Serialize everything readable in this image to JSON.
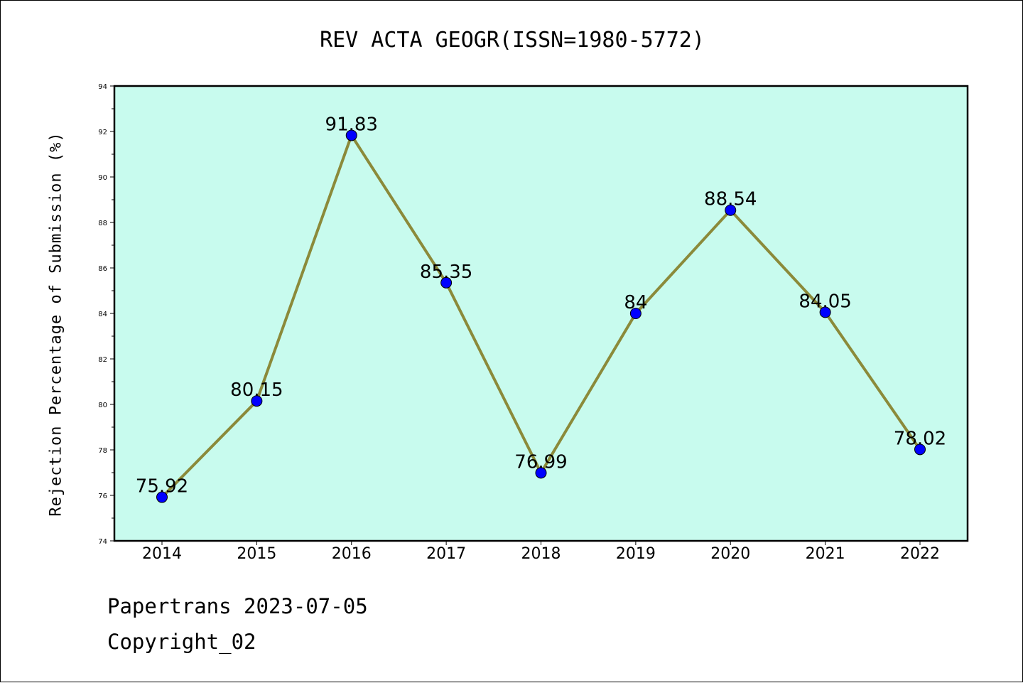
{
  "chart_data": {
    "type": "line",
    "title": "REV ACTA GEOGR(ISSN=1980-5772)",
    "xlabel": "",
    "ylabel": "Rejection Percentage of Submission (%)",
    "categories": [
      "2014",
      "2015",
      "2016",
      "2017",
      "2018",
      "2019",
      "2020",
      "2021",
      "2022"
    ],
    "series": [
      {
        "values": [
          75.92,
          80.15,
          91.83,
          85.35,
          76.99,
          84,
          88.54,
          84.05,
          78.02
        ],
        "labels": [
          "75.92",
          "80.15",
          "91.83",
          "85.35",
          "76.99",
          "84",
          "88.54",
          "84.05",
          "78.02"
        ]
      }
    ],
    "ylim": [
      74,
      94
    ],
    "yticks": [
      "74",
      "76",
      "78",
      "80",
      "82",
      "84",
      "86",
      "88",
      "90",
      "92",
      "94"
    ],
    "grid": false,
    "colors": {
      "plot_background": "#c8fbee",
      "line": "#8b8a3a",
      "marker": "#0000ff"
    }
  },
  "footer": {
    "line1": "Papertrans 2023-07-05",
    "line2": "Copyright_02"
  }
}
